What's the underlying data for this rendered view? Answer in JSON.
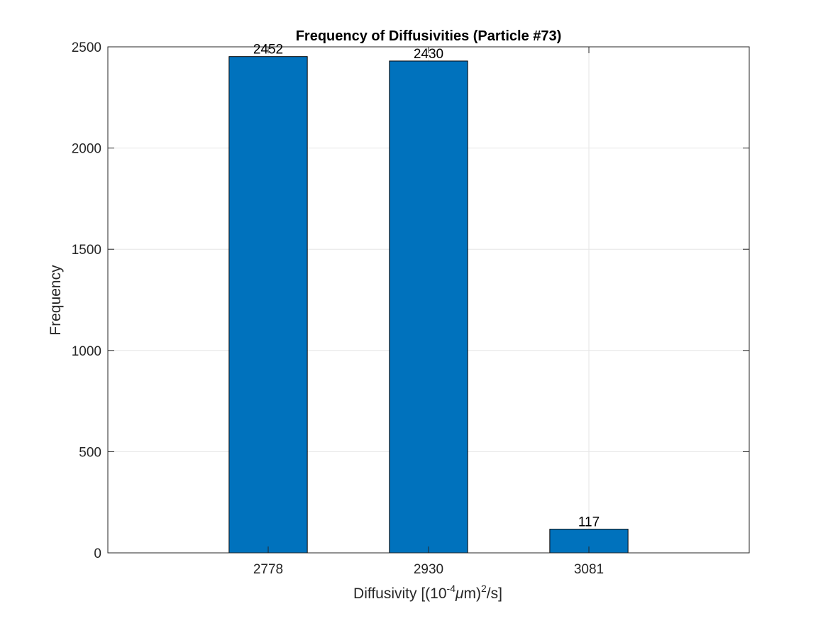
{
  "chart_data": {
    "type": "bar",
    "title": "Frequency of Diffusivities (Particle #73)",
    "xlabel": {
      "prefix": "Diffusivity [(10",
      "exp1": "-4",
      "mu": "μ",
      "mid": "m)",
      "exp2": "2",
      "suffix": "/s]"
    },
    "ylabel": "Frequency",
    "categories": [
      "2778",
      "2930",
      "3081"
    ],
    "values": [
      2452,
      2430,
      117
    ],
    "data_labels": [
      "2452",
      "2430",
      "117"
    ],
    "ylim": [
      0,
      2500
    ],
    "yticks": [
      0,
      500,
      1000,
      1500,
      2000,
      2500
    ],
    "grid": true,
    "bar_color": "#0072BD"
  }
}
